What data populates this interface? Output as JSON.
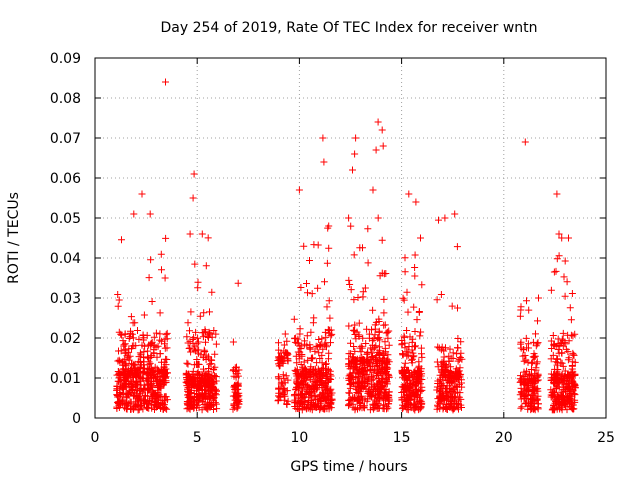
{
  "chart_data": {
    "type": "scatter",
    "title": "Day 254 of 2019, Rate Of TEC Index for receiver wntn",
    "xlabel": "GPS time / hours",
    "ylabel": "ROTI / TECUs",
    "xlim": [
      0,
      25
    ],
    "ylim": [
      0,
      0.09
    ],
    "grid": true,
    "marker": "+",
    "color": "#ff0000",
    "xticks": [
      0,
      5,
      10,
      15,
      20,
      25
    ],
    "xtick_labels": [
      "0",
      "5",
      "10",
      "15",
      "20",
      "25"
    ],
    "yticks": [
      0,
      0.01,
      0.02,
      0.03,
      0.04,
      0.05,
      0.06,
      0.07,
      0.08,
      0.09
    ],
    "ytick_labels": [
      "0",
      "0.01",
      "0.02",
      "0.03",
      "0.04",
      "0.05",
      "0.06",
      "0.07",
      "0.08",
      "0.09"
    ],
    "clusters": [
      {
        "x_start": 1.05,
        "x_end": 3.55,
        "y_typical": 0.008,
        "y_spread": 0.012,
        "y_max": 0.046,
        "density": 500
      },
      {
        "x_start": 4.45,
        "x_end": 5.95,
        "y_typical": 0.007,
        "y_spread": 0.013,
        "y_max": 0.046,
        "density": 330
      },
      {
        "x_start": 6.75,
        "x_end": 7.05,
        "y_typical": 0.005,
        "y_spread": 0.006,
        "y_max": 0.036,
        "density": 60
      },
      {
        "x_start": 8.95,
        "x_end": 9.45,
        "y_typical": 0.011,
        "y_spread": 0.004,
        "y_max": 0.021,
        "density": 70
      },
      {
        "x_start": 9.75,
        "x_end": 11.6,
        "y_typical": 0.008,
        "y_spread": 0.012,
        "y_max": 0.048,
        "density": 380
      },
      {
        "x_start": 12.4,
        "x_end": 14.4,
        "y_typical": 0.01,
        "y_spread": 0.012,
        "y_max": 0.05,
        "density": 450
      },
      {
        "x_start": 15.0,
        "x_end": 16.0,
        "y_typical": 0.008,
        "y_spread": 0.012,
        "y_max": 0.045,
        "density": 230
      },
      {
        "x_start": 16.7,
        "x_end": 17.95,
        "y_typical": 0.008,
        "y_spread": 0.008,
        "y_max": 0.05,
        "density": 220
      },
      {
        "x_start": 20.8,
        "x_end": 21.7,
        "y_typical": 0.007,
        "y_spread": 0.01,
        "y_max": 0.03,
        "density": 170
      },
      {
        "x_start": 22.3,
        "x_end": 23.5,
        "y_typical": 0.007,
        "y_spread": 0.012,
        "y_max": 0.045,
        "density": 270
      }
    ],
    "outliers": [
      {
        "x": 3.45,
        "y": 0.084
      },
      {
        "x": 4.85,
        "y": 0.061
      },
      {
        "x": 4.8,
        "y": 0.055
      },
      {
        "x": 2.3,
        "y": 0.056
      },
      {
        "x": 1.9,
        "y": 0.051
      },
      {
        "x": 2.7,
        "y": 0.051
      },
      {
        "x": 11.15,
        "y": 0.07
      },
      {
        "x": 11.2,
        "y": 0.064
      },
      {
        "x": 10.0,
        "y": 0.057
      },
      {
        "x": 12.75,
        "y": 0.07
      },
      {
        "x": 12.7,
        "y": 0.066
      },
      {
        "x": 12.6,
        "y": 0.062
      },
      {
        "x": 13.85,
        "y": 0.074
      },
      {
        "x": 14.05,
        "y": 0.072
      },
      {
        "x": 13.75,
        "y": 0.067
      },
      {
        "x": 14.1,
        "y": 0.068
      },
      {
        "x": 13.6,
        "y": 0.057
      },
      {
        "x": 15.35,
        "y": 0.056
      },
      {
        "x": 15.7,
        "y": 0.054
      },
      {
        "x": 17.6,
        "y": 0.051
      },
      {
        "x": 21.05,
        "y": 0.069
      },
      {
        "x": 22.6,
        "y": 0.056
      },
      {
        "x": 22.7,
        "y": 0.046
      }
    ]
  }
}
